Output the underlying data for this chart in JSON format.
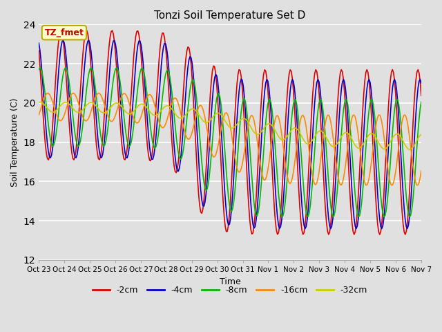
{
  "title": "Tonzi Soil Temperature Set D",
  "xlabel": "Time",
  "ylabel": "Soil Temperature (C)",
  "ylim": [
    12,
    24
  ],
  "yticks": [
    12,
    14,
    16,
    18,
    20,
    22,
    24
  ],
  "xtick_labels": [
    "Oct 23",
    "Oct 24",
    "Oct 25",
    "Oct 26",
    "Oct 27",
    "Oct 28",
    "Oct 29",
    "Oct 30",
    "Oct 31",
    "Nov 1",
    "Nov 2",
    "Nov 3",
    "Nov 4",
    "Nov 5",
    "Nov 6",
    "Nov 7"
  ],
  "annotation_text": "TZ_fmet",
  "annotation_color": "#cc0000",
  "annotation_bg": "#ffffcc",
  "annotation_border": "#bbaa00",
  "series_order": [
    "-2cm",
    "-4cm",
    "-8cm",
    "-16cm",
    "-32cm"
  ],
  "series_colors": {
    "-2cm": "#dd0000",
    "-4cm": "#0000cc",
    "-8cm": "#00bb00",
    "-16cm": "#ff8800",
    "-32cm": "#cccc00"
  },
  "lw": 1.2,
  "bg_color": "#e0e0e0",
  "plot_bg": "#e0e0e0",
  "grid_color": "#ffffff",
  "figsize": [
    6.4,
    4.8
  ],
  "dpi": 100
}
